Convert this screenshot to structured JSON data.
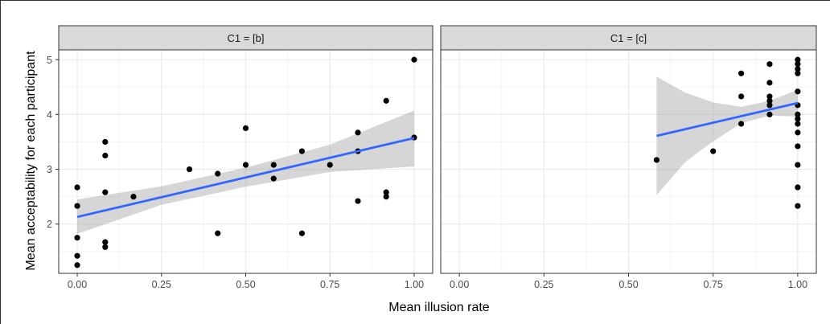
{
  "chart_data": {
    "type": "scatter",
    "xlabel": "Mean illusion rate",
    "ylabel": "Mean acceptability for each participant",
    "xlim": [
      -0.055,
      1.055
    ],
    "ylim": [
      1.1,
      5.18
    ],
    "x_ticks": [
      0.0,
      0.25,
      0.5,
      0.75,
      1.0
    ],
    "x_tick_labels": [
      "0.00",
      "0.25",
      "0.50",
      "0.75",
      "1.00"
    ],
    "y_ticks": [
      2,
      3,
      4,
      5
    ],
    "y_tick_labels": [
      "2",
      "3",
      "4",
      "5"
    ],
    "grid": true,
    "colors": {
      "points": "#000000",
      "fit_line": "#3366ff",
      "ribbon": "#999999",
      "strip": "#d9d9d9",
      "grid_major": "#ebebeb",
      "grid_minor": "#f5f5f5"
    },
    "panels": [
      {
        "strip": "C1 = [b]",
        "points": [
          {
            "x": 0.0,
            "y": 2.67
          },
          {
            "x": 0.0,
            "y": 2.33
          },
          {
            "x": 0.0,
            "y": 1.75
          },
          {
            "x": 0.0,
            "y": 1.42
          },
          {
            "x": 0.0,
            "y": 1.25
          },
          {
            "x": 0.083,
            "y": 3.5
          },
          {
            "x": 0.083,
            "y": 3.25
          },
          {
            "x": 0.083,
            "y": 2.58
          },
          {
            "x": 0.083,
            "y": 1.67
          },
          {
            "x": 0.083,
            "y": 1.58
          },
          {
            "x": 0.167,
            "y": 2.5
          },
          {
            "x": 0.333,
            "y": 3.0
          },
          {
            "x": 0.417,
            "y": 2.92
          },
          {
            "x": 0.417,
            "y": 1.83
          },
          {
            "x": 0.5,
            "y": 3.75
          },
          {
            "x": 0.5,
            "y": 3.08
          },
          {
            "x": 0.583,
            "y": 3.08
          },
          {
            "x": 0.583,
            "y": 2.83
          },
          {
            "x": 0.667,
            "y": 3.33
          },
          {
            "x": 0.667,
            "y": 1.83
          },
          {
            "x": 0.75,
            "y": 3.08
          },
          {
            "x": 0.833,
            "y": 3.67
          },
          {
            "x": 0.833,
            "y": 3.33
          },
          {
            "x": 0.833,
            "y": 2.42
          },
          {
            "x": 0.917,
            "y": 4.25
          },
          {
            "x": 0.917,
            "y": 2.58
          },
          {
            "x": 0.917,
            "y": 2.5
          },
          {
            "x": 1.0,
            "y": 5.0
          },
          {
            "x": 1.0,
            "y": 3.58
          }
        ],
        "fit": {
          "x_start": 0.0,
          "x_end": 1.0,
          "y_start": 2.13,
          "y_end": 3.57
        },
        "ribbon": {
          "x": [
            0.0,
            0.25,
            0.5,
            0.75,
            1.0
          ],
          "lower": [
            1.82,
            2.35,
            2.68,
            2.95,
            3.05
          ],
          "upper": [
            2.45,
            2.69,
            3.03,
            3.45,
            4.07
          ]
        }
      },
      {
        "strip": "C1 = [c]",
        "points": [
          {
            "x": 0.583,
            "y": 3.17
          },
          {
            "x": 0.75,
            "y": 3.33
          },
          {
            "x": 0.833,
            "y": 4.75
          },
          {
            "x": 0.833,
            "y": 4.33
          },
          {
            "x": 0.833,
            "y": 3.83
          },
          {
            "x": 0.917,
            "y": 4.92
          },
          {
            "x": 0.917,
            "y": 4.58
          },
          {
            "x": 0.917,
            "y": 4.33
          },
          {
            "x": 0.917,
            "y": 4.25
          },
          {
            "x": 0.917,
            "y": 4.17
          },
          {
            "x": 0.917,
            "y": 4.0
          },
          {
            "x": 1.0,
            "y": 5.0
          },
          {
            "x": 1.0,
            "y": 4.92
          },
          {
            "x": 1.0,
            "y": 4.83
          },
          {
            "x": 1.0,
            "y": 4.75
          },
          {
            "x": 1.0,
            "y": 4.42
          },
          {
            "x": 1.0,
            "y": 4.17
          },
          {
            "x": 1.0,
            "y": 4.0
          },
          {
            "x": 1.0,
            "y": 3.92
          },
          {
            "x": 1.0,
            "y": 3.83
          },
          {
            "x": 1.0,
            "y": 3.67
          },
          {
            "x": 1.0,
            "y": 3.42
          },
          {
            "x": 1.0,
            "y": 3.08
          },
          {
            "x": 1.0,
            "y": 2.67
          },
          {
            "x": 1.0,
            "y": 2.33
          }
        ],
        "fit": {
          "x_start": 0.583,
          "x_end": 1.0,
          "y_start": 3.61,
          "y_end": 4.21
        },
        "ribbon": {
          "x": [
            0.583,
            0.667,
            0.75,
            0.833,
            0.917,
            1.0
          ],
          "lower": [
            2.53,
            3.13,
            3.51,
            3.84,
            3.98,
            3.96
          ],
          "upper": [
            4.69,
            4.4,
            4.22,
            4.14,
            4.25,
            4.45
          ]
        }
      }
    ]
  }
}
